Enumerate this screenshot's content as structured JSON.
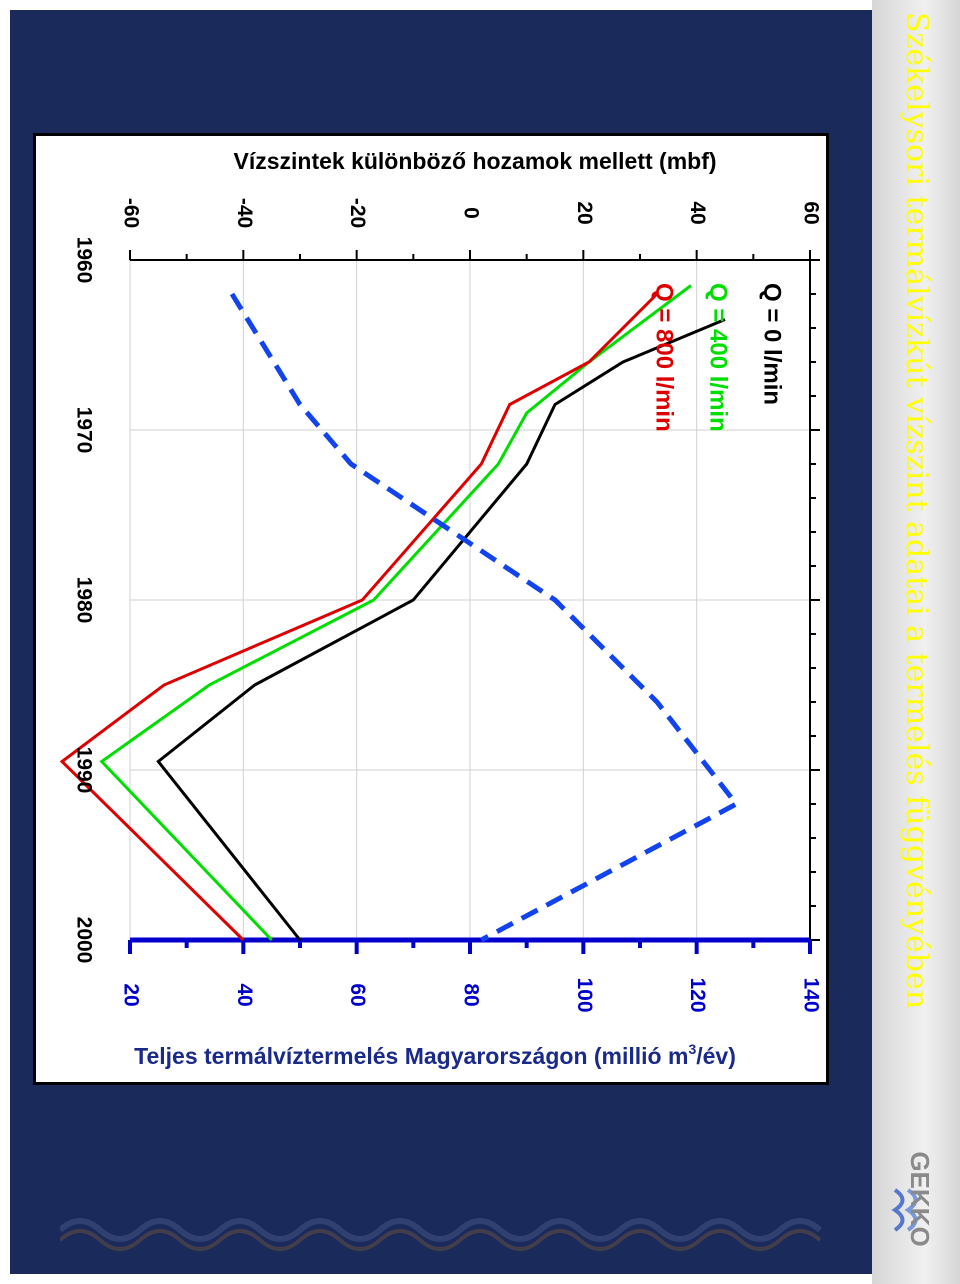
{
  "slide": {
    "title": "Székelysori termálvízkút vízszint adatai a termelés függvényében",
    "logo_text": "GEKKO",
    "logo_icon": "gekko-wave-logo",
    "colors": {
      "background": "#1a2a5a",
      "title": "#ffff00",
      "panel": "#ffffff"
    }
  },
  "chart_data": {
    "type": "line",
    "title": "",
    "x": [
      1960,
      1970,
      1980,
      1990,
      2000
    ],
    "x_ticks": [
      "1960",
      "1970",
      "1980",
      "1990",
      "2000"
    ],
    "xlim": [
      1960,
      2000
    ],
    "grid": true,
    "left_axis": {
      "label": "Vízszintek különböző hozamok mellett (mbf)",
      "ticks": [
        "60",
        "40",
        "20",
        "0",
        "-20",
        "-40",
        "-60"
      ],
      "range": [
        -60,
        60
      ]
    },
    "right_axis": {
      "label_main": "Teljes termálvíztermelés Magyarországon (millió m",
      "label_sup": "3",
      "label_end": "/év)",
      "ticks": [
        "140",
        "120",
        "100",
        "80",
        "60",
        "40",
        "20"
      ],
      "range": [
        20,
        140
      ],
      "color": "#0000cc"
    },
    "series": [
      {
        "name": "Q = 0 l/min",
        "axis": "left",
        "color": "#000000",
        "style": "solid",
        "x": [
          1963.5,
          1966,
          1968.5,
          1972,
          1980,
          1985,
          1989.5,
          2000
        ],
        "y": [
          45,
          27,
          15,
          10,
          -10,
          -38,
          -55,
          -30
        ]
      },
      {
        "name": "Q = 400 l/min",
        "axis": "left",
        "color": "#00dd00",
        "style": "solid",
        "x": [
          1961.5,
          1966,
          1969,
          1972,
          1980,
          1985,
          1989.5,
          2000
        ],
        "y": [
          39,
          21,
          10,
          5,
          -17,
          -46,
          -65,
          -35
        ]
      },
      {
        "name": "Q = 800 l/min",
        "axis": "left",
        "color": "#dd0000",
        "style": "solid",
        "x": [
          1962,
          1966,
          1968.5,
          1972,
          1980,
          1985,
          1989.5,
          2000
        ],
        "y": [
          33,
          21,
          7,
          2,
          -19,
          -54,
          -72,
          -40
        ]
      },
      {
        "name": "",
        "axis": "right",
        "color": "#1144ee",
        "style": "dashed",
        "x": [
          1962,
          1968.5,
          1972,
          1980,
          1986,
          1992,
          2000
        ],
        "y": [
          38,
          50,
          59,
          95,
          113,
          127,
          82
        ]
      }
    ]
  }
}
